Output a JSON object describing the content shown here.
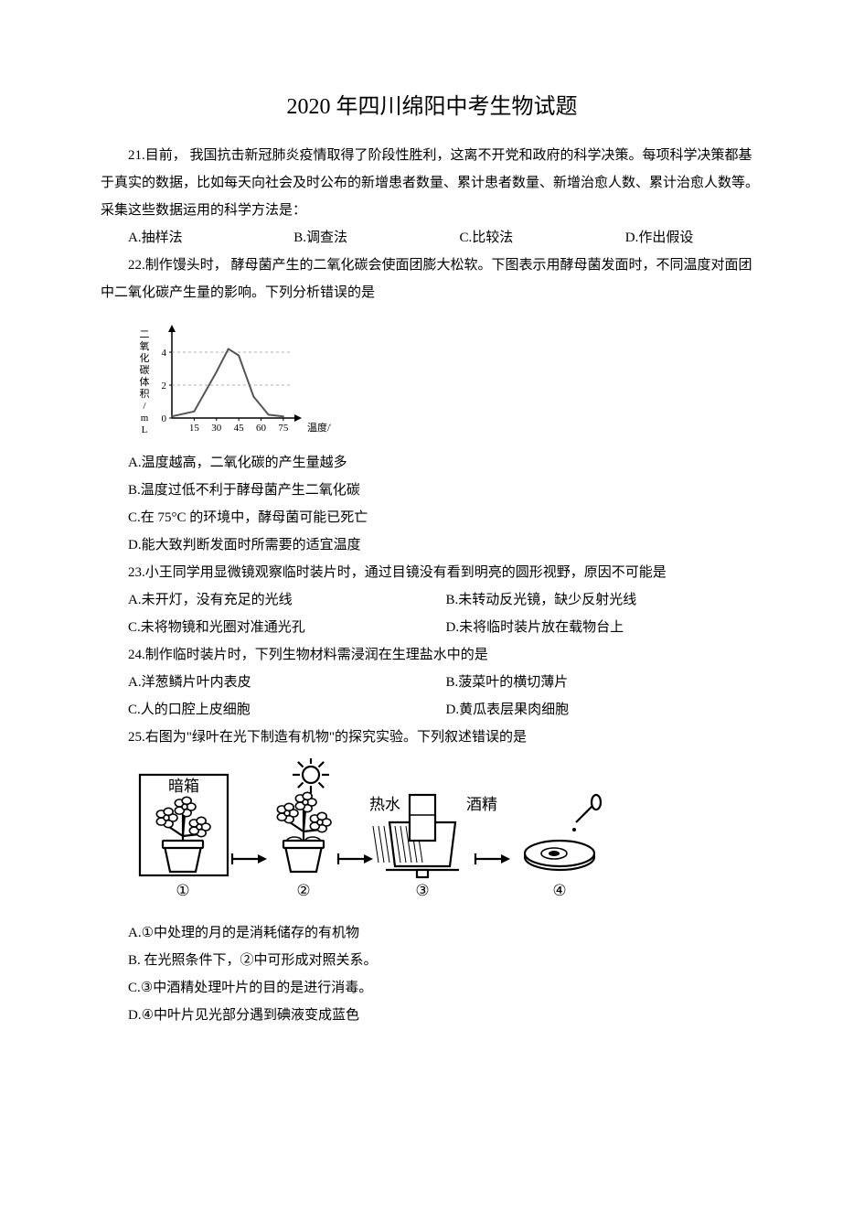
{
  "title": "2020 年四川绵阳中考生物试题",
  "q21": {
    "stem1": "21.目前，  我国抗击新冠肺炎疫情取得了阶段性胜利，这离不开党和政府的科学决策。每项科学决策都基于真实的数据，比如每天向社会及时公布的新增患者数量、累计患者数量、新增治愈人数、累计治愈人数等。采集这些数据运用的科学方法是：",
    "A": "A.抽样法",
    "B": "B.调查法",
    "C": "C.比较法",
    "D": "D.作出假设"
  },
  "q22": {
    "stem": "22.制作馒头时，  酵母菌产生的二氧化碳会使面团膨大松软。下图表示用酵母菌发面时，不同温度对面团中二氧化碳产生量的影响。下列分析错误的是",
    "A": "A.温度越高，二氧化碳的产生量越多",
    "B": "B.温度过低不利于酵母菌产生二氧化碳",
    "C": "C.在 75°C 的环境中，酵母菌可能已死亡",
    "D": "D.能大致判断发面时所需要的适宜温度",
    "chart": {
      "type": "line-curve",
      "y_label": "二氧化碳体积/mL",
      "x_label": "温度/℃",
      "x_ticks": [
        "15",
        "30",
        "45",
        "60",
        "75"
      ],
      "x_vals": [
        15,
        30,
        45,
        60,
        75
      ],
      "y_ticks": [
        "0",
        "2",
        "4"
      ],
      "y_vals": [
        0,
        2,
        4
      ],
      "points": [
        [
          0,
          0.1
        ],
        [
          15,
          0.4
        ],
        [
          30,
          2.8
        ],
        [
          38,
          4.2
        ],
        [
          45,
          3.8
        ],
        [
          55,
          1.3
        ],
        [
          65,
          0.2
        ],
        [
          75,
          0.1
        ]
      ],
      "line_color": "#555555",
      "axis_color": "#000000",
      "label_fontsize": 11
    }
  },
  "q23": {
    "stem": "23.小王同学用显微镜观察临时装片时，通过目镜没有看到明亮的圆形视野，原因不可能是",
    "A": "A.未开灯，没有充足的光线",
    "B": "B.未转动反光镜，缺少反射光线",
    "C": "C.未将物镜和光圈对准通光孔",
    "D": "D.未将临时装片放在载物台上"
  },
  "q24": {
    "stem": "24.制作临时装片时，下列生物材料需浸润在生理盐水中的是",
    "A": "A.洋葱鳞片叶内表皮",
    "B": "B.菠菜叶的横切薄片",
    "C": "C.人的口腔上皮细胞",
    "D": "D.黄瓜表层果肉细胞"
  },
  "q25": {
    "stem": "25.右图为\"绿叶在光下制造有机物\"的探究实验。下列叙述错误的是",
    "A": "A.①中处理的月的是消耗储存的有机物",
    "B": "B. 在光照条件下，②中可形成对照关系。",
    "C": "C.③中酒精处理叶片的目的是进行消毒。",
    "D": "D.④中叶片见光部分遇到碘液变成蓝色",
    "labels": {
      "dark_box": "暗箱",
      "hot_water": "热水",
      "alcohol": "酒精",
      "step1": "①",
      "step2": "②",
      "step3": "③",
      "step4": "④"
    }
  },
  "colors": {
    "text": "#000000",
    "bg": "#ffffff",
    "stroke": "#000000"
  }
}
